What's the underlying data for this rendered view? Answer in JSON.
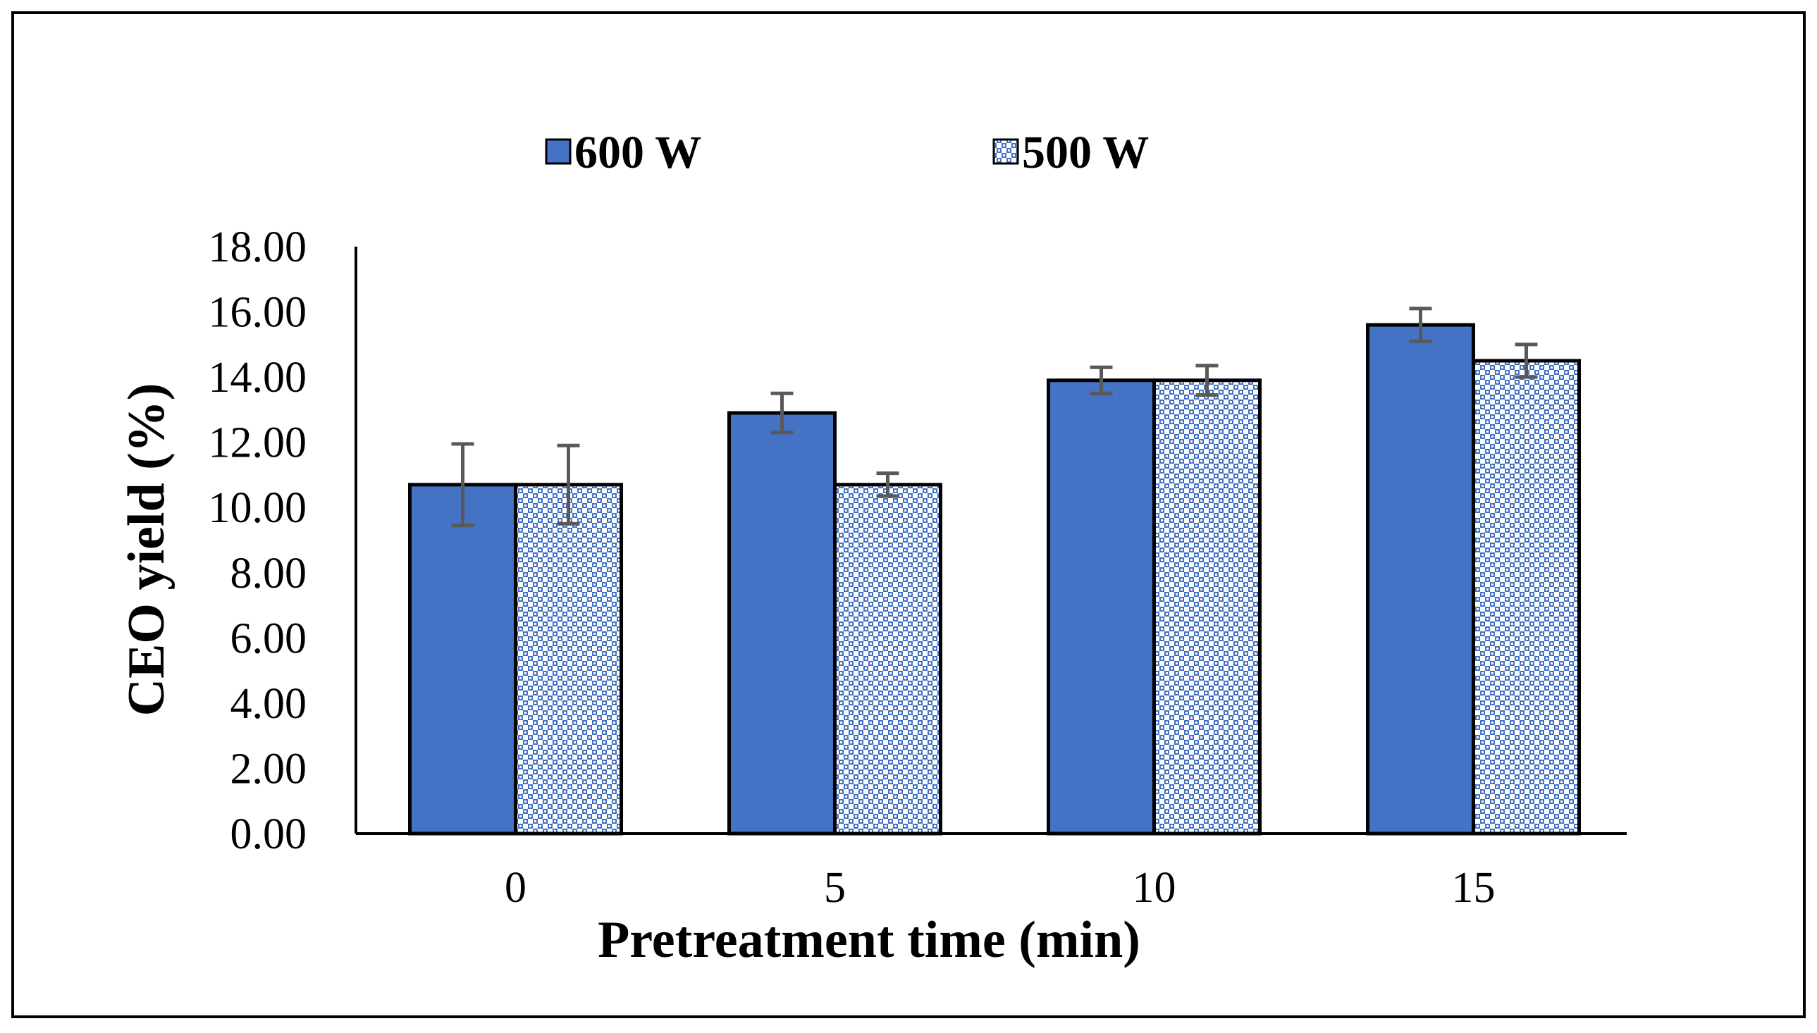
{
  "chart_data": {
    "type": "bar",
    "categories": [
      "0",
      "5",
      "10",
      "15"
    ],
    "series": [
      {
        "name": "600 W",
        "values": [
          10.7,
          12.9,
          13.9,
          15.6
        ],
        "errors": [
          1.25,
          0.6,
          0.4,
          0.5
        ],
        "color": "#4472C4",
        "pattern": "solid"
      },
      {
        "name": "500 W",
        "values": [
          10.7,
          10.7,
          13.9,
          14.5
        ],
        "errors": [
          1.2,
          0.35,
          0.45,
          0.5
        ],
        "color": "#4472C4",
        "pattern": "checkered"
      }
    ],
    "ylim": [
      0,
      18
    ],
    "yticks": [
      "0.00",
      "2.00",
      "4.00",
      "6.00",
      "8.00",
      "10.00",
      "12.00",
      "14.00",
      "16.00",
      "18.00"
    ],
    "xlabel": "Pretreatment time (min)",
    "ylabel": "CEO yield (%)",
    "grid": false,
    "legend_position": "top-left",
    "colors": {
      "bar_fill": "#4472C4",
      "bar_stroke": "#000000",
      "error_bar": "#595959",
      "axis": "#000000",
      "frame": "#000000"
    }
  }
}
